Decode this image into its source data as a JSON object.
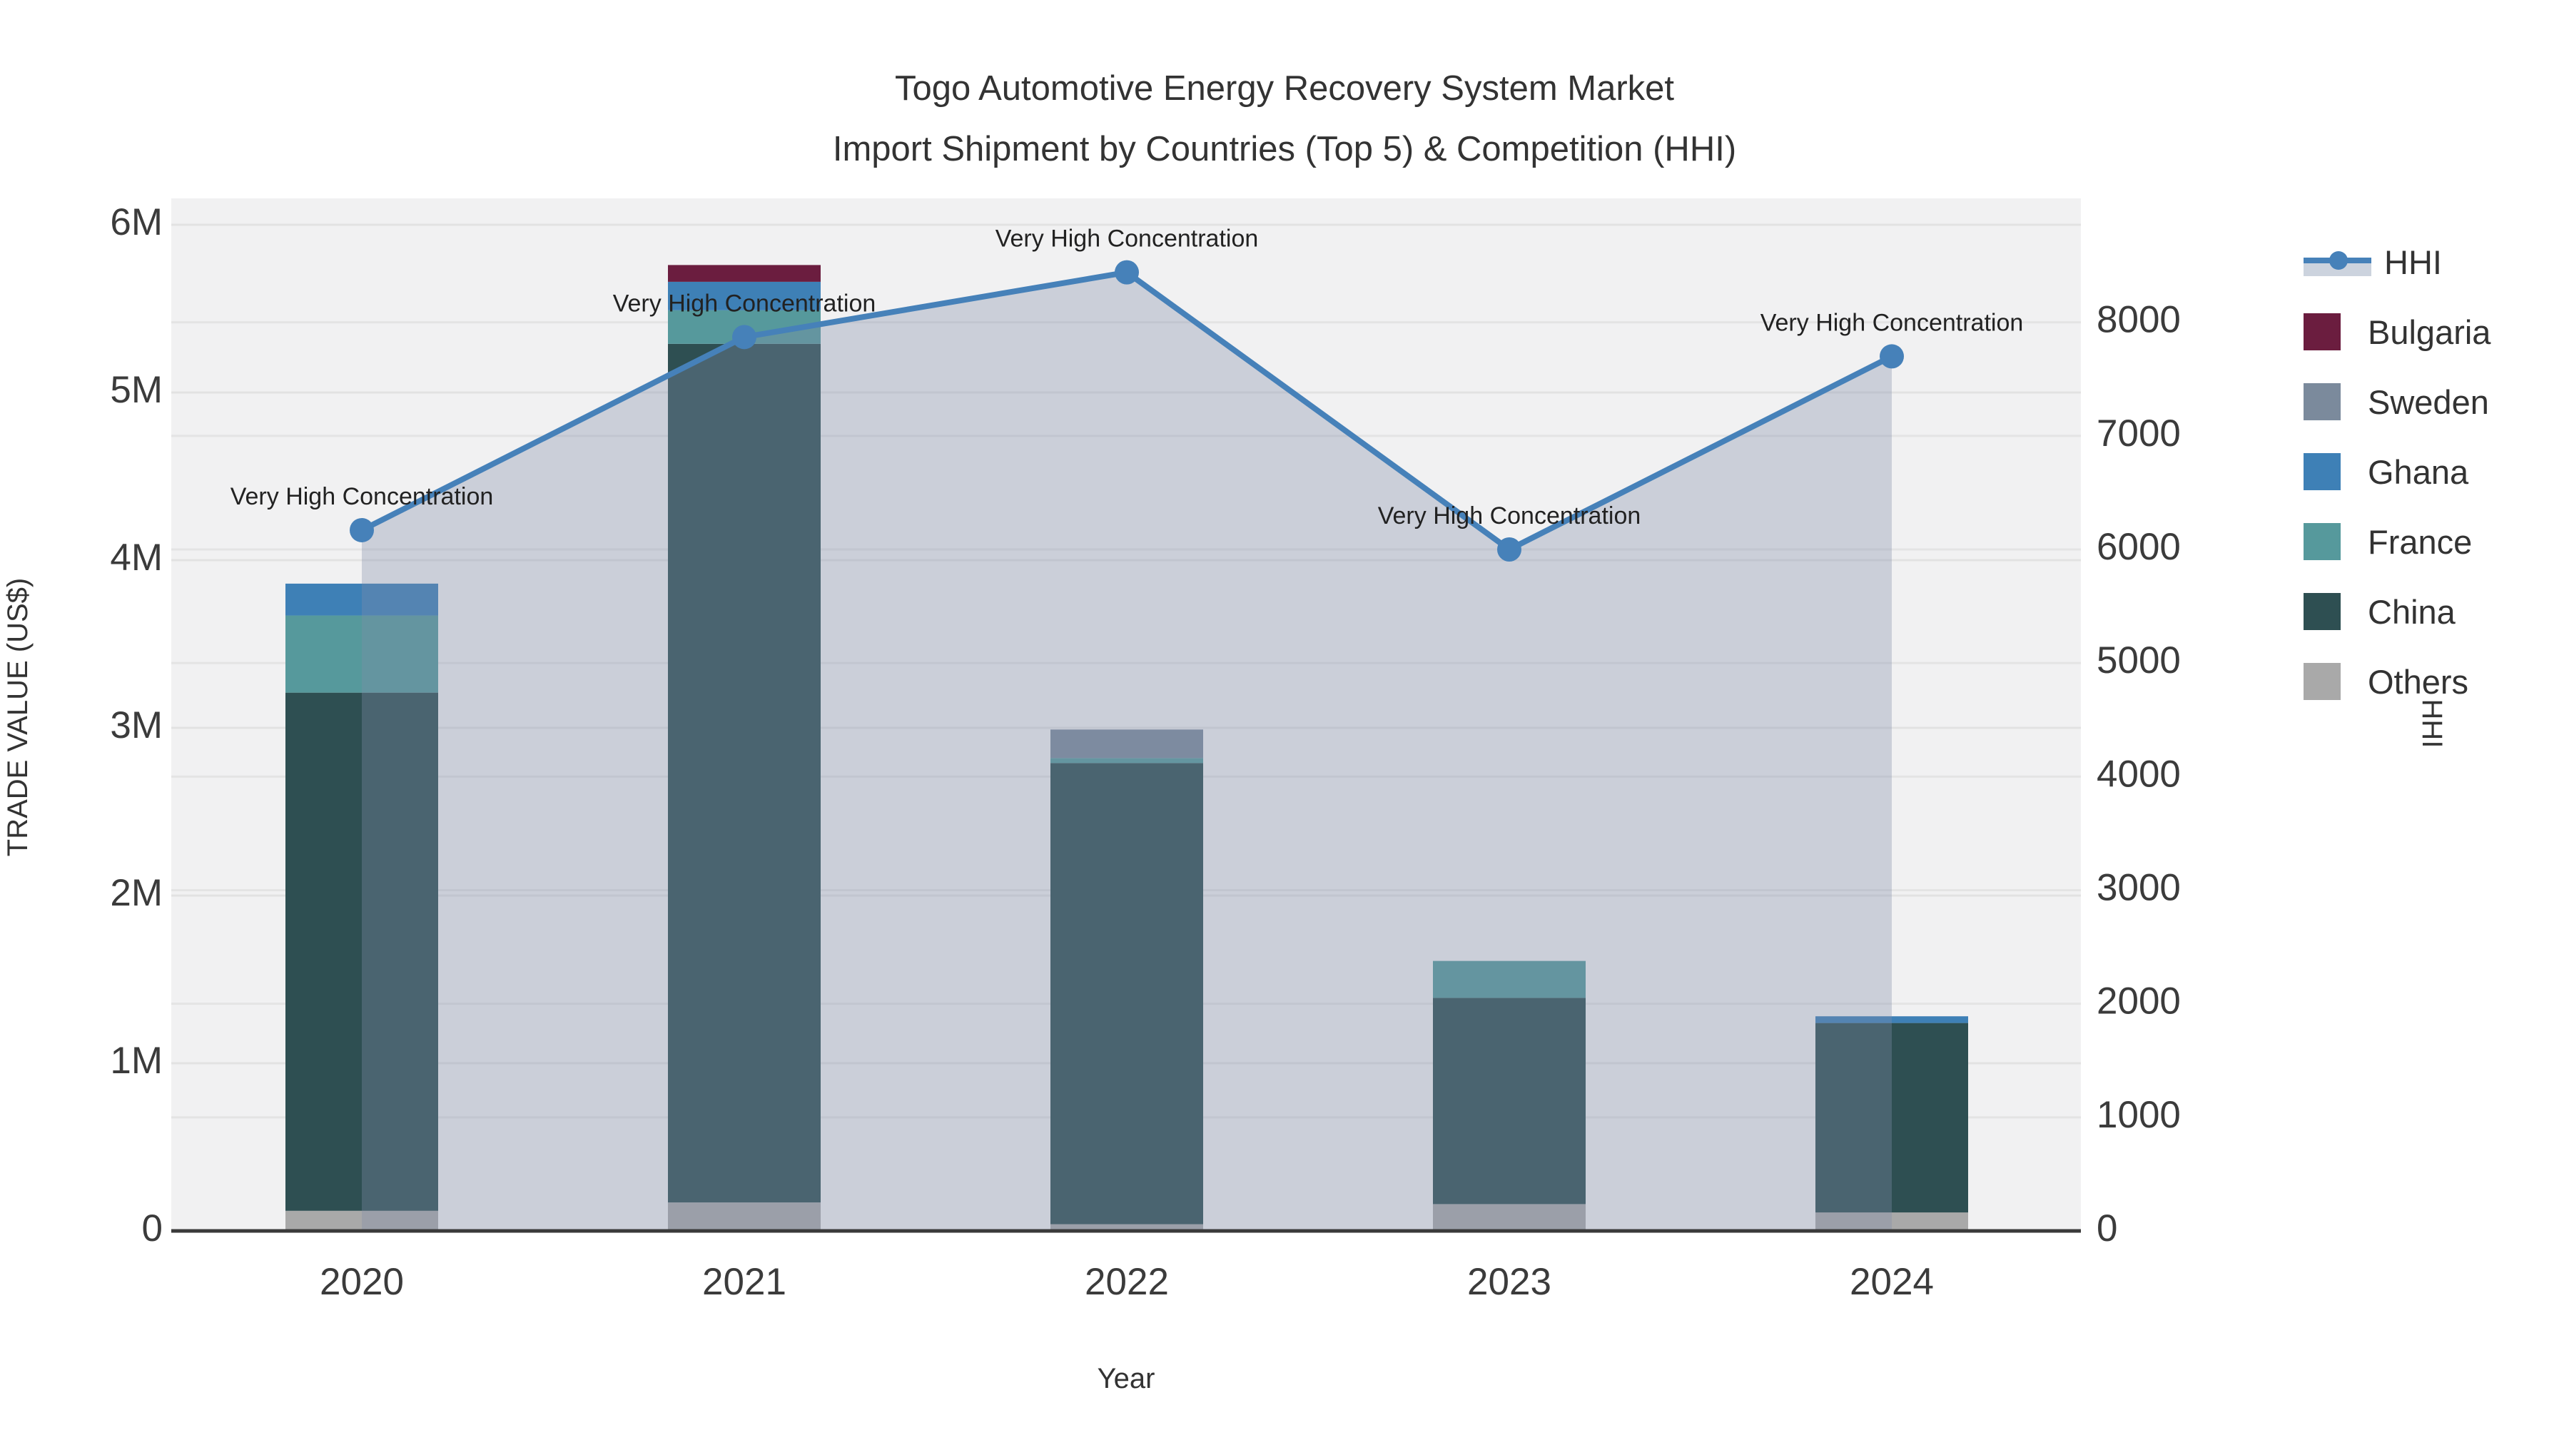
{
  "title": {
    "line1": "Togo Automotive Energy Recovery System Market",
    "line2": "Import Shipment by Countries (Top 5) & Competition (HHI)"
  },
  "axes": {
    "x_title": "Year",
    "y_left_title": "TRADE VALUE (US$)",
    "y_right_title": "HHI",
    "x_ticks": [
      "2020",
      "2021",
      "2022",
      "2023",
      "2024"
    ],
    "y_left_ticks": [
      "0",
      "1M",
      "2M",
      "3M",
      "4M",
      "5M",
      "6M"
    ],
    "y_right_ticks": [
      "0",
      "1000",
      "2000",
      "3000",
      "4000",
      "5000",
      "6000",
      "7000",
      "8000"
    ]
  },
  "legend": {
    "items": [
      {
        "name": "HHI",
        "type": "line",
        "color": "#4681b9"
      },
      {
        "name": "Bulgaria",
        "type": "box",
        "color": "#6b1d3f"
      },
      {
        "name": "Sweden",
        "type": "box",
        "color": "#7b8a9c"
      },
      {
        "name": "Ghana",
        "type": "box",
        "color": "#3e80b6"
      },
      {
        "name": "France",
        "type": "box",
        "color": "#56999c"
      },
      {
        "name": "China",
        "type": "box",
        "color": "#2e4f52"
      },
      {
        "name": "Others",
        "type": "box",
        "color": "#a9a9a9"
      }
    ]
  },
  "chart_data": {
    "type": "bar",
    "subtype": "stacked-bars-with-line",
    "unit_left": "million US$",
    "unit_right": "HHI index",
    "categories": [
      "2020",
      "2021",
      "2022",
      "2023",
      "2024"
    ],
    "series": [
      {
        "name": "Others",
        "color": "#a9a9a9",
        "values": [
          0.12,
          0.17,
          0.04,
          0.16,
          0.11
        ]
      },
      {
        "name": "China",
        "color": "#2e4f52",
        "values": [
          3.09,
          5.12,
          2.75,
          1.23,
          1.13
        ]
      },
      {
        "name": "France",
        "color": "#56999c",
        "values": [
          0.46,
          0.2,
          0.03,
          0.22,
          0.0
        ]
      },
      {
        "name": "Ghana",
        "color": "#3e80b6",
        "values": [
          0.19,
          0.17,
          0.0,
          0.0,
          0.04
        ]
      },
      {
        "name": "Sweden",
        "color": "#7b8a9c",
        "values": [
          0.0,
          0.0,
          0.17,
          0.0,
          0.0
        ]
      },
      {
        "name": "Bulgaria",
        "color": "#6b1d3f",
        "values": [
          0.0,
          0.1,
          0.0,
          0.0,
          0.0
        ]
      }
    ],
    "bar_totals": [
      3.86,
      5.76,
      2.99,
      1.61,
      1.28
    ],
    "line_series": {
      "name": "HHI",
      "color": "#4681b9",
      "area_fill": "rgba(128,141,171,0.34)",
      "values": [
        6170,
        7870,
        8440,
        6000,
        7700
      ]
    },
    "annotations": [
      {
        "text": "Very High Concentration",
        "category": "2020"
      },
      {
        "text": "Very High Concentration",
        "category": "2021"
      },
      {
        "text": "Very High Concentration",
        "category": "2022"
      },
      {
        "text": "Very High Concentration",
        "category": "2023"
      },
      {
        "text": "Very High Concentration",
        "category": "2024"
      }
    ],
    "y_left_range": [
      0,
      6000000
    ],
    "y_right_range": [
      0,
      8800
    ],
    "grid": true,
    "legend_position": "right"
  }
}
